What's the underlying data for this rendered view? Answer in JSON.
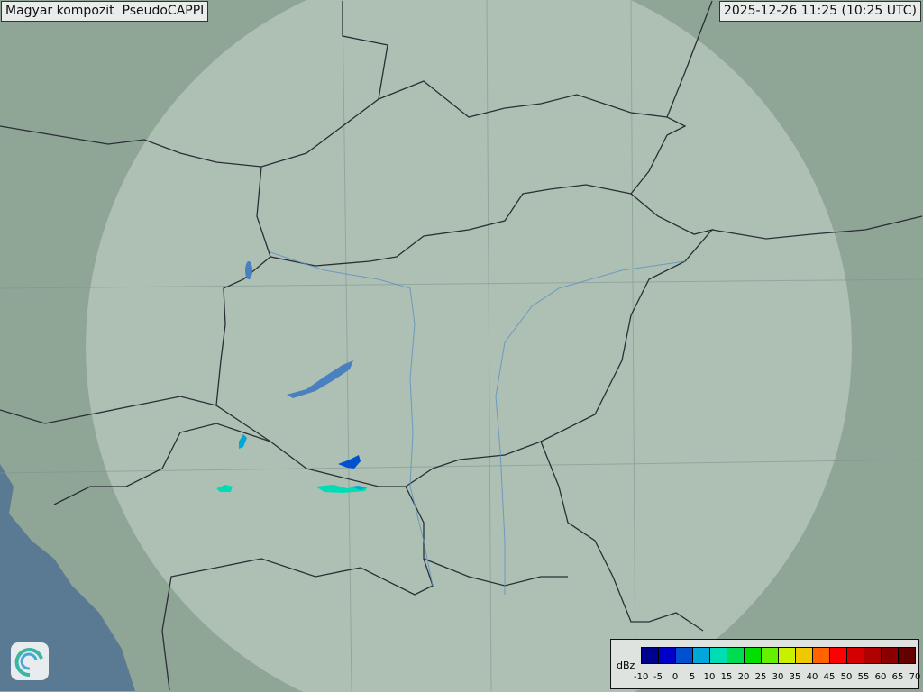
{
  "header": {
    "title": "Magyar kompozit  PseudoCAPPI",
    "timestamp": "2025-12-26 11:25 (10:25 UTC)"
  },
  "legend": {
    "unit": "dBz",
    "ticks": [
      "-10",
      "-5",
      "0",
      "5",
      "10",
      "15",
      "20",
      "25",
      "30",
      "35",
      "40",
      "45",
      "50",
      "55",
      "60",
      "65",
      "70"
    ],
    "colors": [
      "#00008f",
      "#0000c8",
      "#0050d0",
      "#00a8d8",
      "#00dcb4",
      "#00dc50",
      "#00e000",
      "#64f000",
      "#c8f000",
      "#f0c800",
      "#ff6400",
      "#ff0000",
      "#d40000",
      "#b00000",
      "#8a0000",
      "#640000"
    ]
  },
  "map": {
    "land_color": "#8fa596",
    "coverage_color": "#b5c8bc",
    "sea_color": "#5a7a94",
    "border_color": "#2a2f35",
    "lake_color": "#4a7fc0"
  },
  "logo": {
    "icon": "omsz-swirl-logo-icon"
  }
}
